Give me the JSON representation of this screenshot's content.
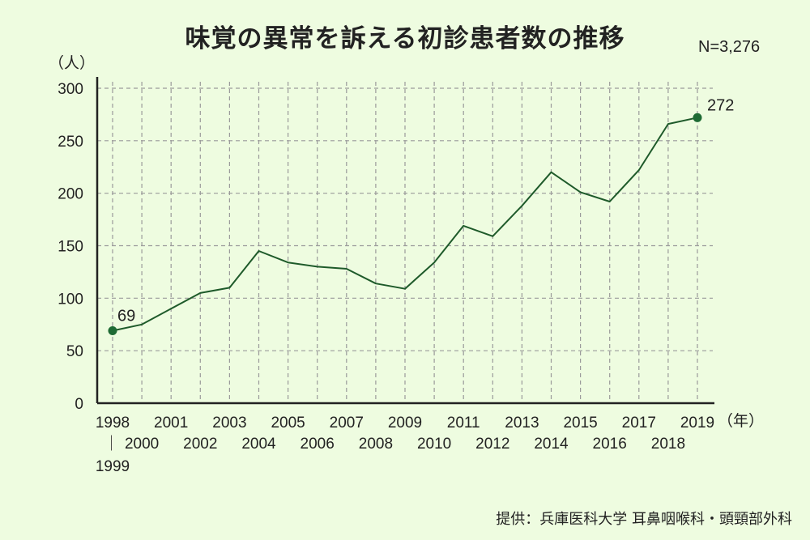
{
  "title": "味覚の異常を訴える初診患者数の推移",
  "sample_size": "N=3,276",
  "source": "提供：兵庫医科大学 耳鼻咽喉科・頭頸部外科",
  "colors": {
    "background": "#eefce0",
    "line": "#1e5a2a",
    "marker": "#1e6b34",
    "grid": "#9a9a9a",
    "axis": "#222222"
  },
  "chart_data": {
    "type": "line",
    "title": "味覚の異常を訴える初診患者数の推移",
    "ylabel": "（人）",
    "xlabel": "（年）",
    "ylim": [
      0,
      300
    ],
    "yticks": [
      0,
      50,
      100,
      150,
      200,
      250,
      300
    ],
    "grid": true,
    "x": [
      "1998｜1999",
      "2000",
      "2001",
      "2002",
      "2003",
      "2004",
      "2005",
      "2006",
      "2007",
      "2008",
      "2009",
      "2010",
      "2011",
      "2012",
      "2013",
      "2014",
      "2015",
      "2016",
      "2017",
      "2018",
      "2019"
    ],
    "values": [
      69,
      75,
      90,
      105,
      110,
      145,
      134,
      130,
      128,
      114,
      109,
      134,
      169,
      159,
      188,
      220,
      201,
      192,
      222,
      266,
      272
    ],
    "tick_labels": [
      {
        "text": "1998",
        "row": 0
      },
      {
        "text": "｜",
        "row": 1
      },
      {
        "text": "1999",
        "row": 2
      },
      {
        "text": "2000",
        "row": 1
      },
      {
        "text": "2001",
        "row": 0
      },
      {
        "text": "2002",
        "row": 1
      },
      {
        "text": "2003",
        "row": 0
      },
      {
        "text": "2004",
        "row": 1
      },
      {
        "text": "2005",
        "row": 0
      },
      {
        "text": "2006",
        "row": 1
      },
      {
        "text": "2007",
        "row": 0
      },
      {
        "text": "2008",
        "row": 1
      },
      {
        "text": "2009",
        "row": 0
      },
      {
        "text": "2010",
        "row": 1
      },
      {
        "text": "2011",
        "row": 0
      },
      {
        "text": "2012",
        "row": 1
      },
      {
        "text": "2013",
        "row": 0
      },
      {
        "text": "2014",
        "row": 1
      },
      {
        "text": "2015",
        "row": 0
      },
      {
        "text": "2016",
        "row": 1
      },
      {
        "text": "2017",
        "row": 0
      },
      {
        "text": "2018",
        "row": 1
      },
      {
        "text": "2019",
        "row": 0
      }
    ],
    "annotations": [
      {
        "text": "69",
        "index": 0
      },
      {
        "text": "272",
        "index": 20
      }
    ],
    "markers_at": [
      0,
      20
    ]
  }
}
